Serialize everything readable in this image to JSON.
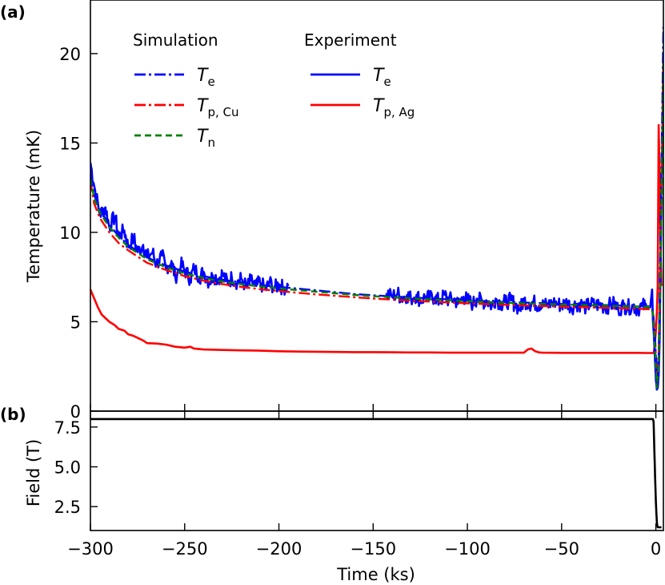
{
  "chart_data": [
    {
      "type": "line",
      "panel_label": "(a)",
      "ylabel": "Temperature (mK)",
      "xlim": [
        -300,
        4
      ],
      "ylim": [
        0,
        23
      ],
      "y_ticks": [
        0,
        5,
        10,
        15,
        20
      ],
      "y_tick_labels": [
        "0",
        "5",
        "10",
        "15",
        "20"
      ],
      "legend": {
        "placement": "top-left",
        "groups": [
          {
            "header": "Simulation",
            "entries": [
              {
                "symbol": "T",
                "sub": "e",
                "color": "#0000ff",
                "dash": "dashdot"
              },
              {
                "symbol": "T",
                "sub": "p, Cu",
                "color": "#ff0000",
                "dash": "dashdot"
              },
              {
                "symbol": "T",
                "sub": "n",
                "color": "#008000",
                "dash": "dashed"
              }
            ]
          },
          {
            "header": "Experiment",
            "entries": [
              {
                "symbol": "T",
                "sub": "e",
                "color": "#0000ff",
                "dash": "solid"
              },
              {
                "symbol": "T",
                "sub": "p, Ag",
                "color": "#ff0000",
                "dash": "solid"
              }
            ]
          }
        ]
      },
      "series": [
        {
          "group": "Simulation",
          "label_symbol": "T",
          "label_sub": "e",
          "color": "#0000ff",
          "dash": "dashdot",
          "x": [
            -300,
            -298,
            -295,
            -290,
            -285,
            -280,
            -270,
            -260,
            -250,
            -240,
            -230,
            -220,
            -210,
            -200,
            -190,
            -180,
            -170,
            -160,
            -150,
            -140,
            -130,
            -120,
            -110,
            -100,
            -90,
            -80,
            -70,
            -60,
            -50,
            -40,
            -30,
            -20,
            -10,
            -3,
            -1.5,
            -0.5,
            0.5,
            1.5,
            2.5,
            4
          ],
          "y": [
            13.2,
            12.1,
            11.3,
            10.4,
            9.8,
            9.3,
            8.6,
            8.15,
            7.8,
            7.55,
            7.35,
            7.2,
            7.05,
            6.95,
            6.85,
            6.75,
            6.65,
            6.55,
            6.48,
            6.42,
            6.36,
            6.3,
            6.25,
            6.2,
            6.15,
            6.1,
            6.07,
            6.04,
            6.0,
            5.97,
            5.94,
            5.91,
            5.88,
            5.85,
            5.6,
            4.2,
            1.8,
            3.0,
            10.0,
            21.5
          ]
        },
        {
          "group": "Simulation",
          "label_symbol": "T",
          "label_sub": "p, Cu",
          "color": "#ff0000",
          "dash": "dashdot",
          "x": [
            -300,
            -298,
            -295,
            -290,
            -285,
            -280,
            -270,
            -260,
            -250,
            -240,
            -230,
            -220,
            -210,
            -200,
            -190,
            -180,
            -170,
            -160,
            -150,
            -140,
            -130,
            -120,
            -110,
            -100,
            -90,
            -80,
            -70,
            -60,
            -50,
            -40,
            -30,
            -20,
            -10,
            -3,
            -1.5,
            -0.5,
            0.5,
            1.5,
            2.5,
            4
          ],
          "y": [
            12.9,
            11.6,
            10.8,
            10.0,
            9.4,
            9.0,
            8.3,
            7.9,
            7.55,
            7.3,
            7.1,
            6.95,
            6.82,
            6.72,
            6.62,
            6.53,
            6.45,
            6.37,
            6.3,
            6.24,
            6.18,
            6.13,
            6.08,
            6.03,
            5.99,
            5.95,
            5.91,
            5.88,
            5.85,
            5.82,
            5.79,
            5.76,
            5.73,
            5.7,
            5.5,
            4.3,
            2.0,
            3.2,
            9.0,
            20.0
          ]
        },
        {
          "group": "Simulation",
          "label_symbol": "T",
          "label_sub": "n",
          "color": "#008000",
          "dash": "dashed",
          "x": [
            -300,
            -298,
            -295,
            -290,
            -285,
            -280,
            -270,
            -260,
            -250,
            -240,
            -230,
            -220,
            -210,
            -200,
            -190,
            -180,
            -170,
            -160,
            -150,
            -140,
            -130,
            -120,
            -110,
            -100,
            -90,
            -80,
            -70,
            -60,
            -50,
            -40,
            -30,
            -20,
            -10,
            -3,
            -1.5,
            -0.5,
            0.5,
            1.5,
            2.5,
            4
          ],
          "y": [
            13.0,
            11.9,
            11.1,
            10.3,
            9.7,
            9.2,
            8.5,
            8.05,
            7.7,
            7.45,
            7.25,
            7.1,
            6.97,
            6.87,
            6.77,
            6.68,
            6.59,
            6.5,
            6.43,
            6.37,
            6.31,
            6.25,
            6.2,
            6.15,
            6.1,
            6.06,
            6.03,
            6.0,
            5.97,
            5.94,
            5.91,
            5.88,
            5.85,
            5.82,
            5.5,
            3.6,
            1.3,
            2.6,
            8.0,
            19.5
          ]
        },
        {
          "group": "Experiment",
          "label_symbol": "T",
          "label_sub": "e",
          "color": "#0000ff",
          "dash": "solid",
          "noisy": true,
          "x": [
            -300,
            -298,
            -295,
            -292,
            -290,
            -287,
            -285,
            -282,
            -280,
            -277,
            -275,
            -272,
            -270,
            -267,
            -265,
            -262,
            -260,
            -257,
            -255,
            -252,
            -250,
            -247,
            -245,
            -242,
            -240,
            -237,
            -235,
            -232,
            -230,
            -227,
            -225,
            -222,
            -220,
            -217,
            -215,
            -212,
            -210,
            -207,
            -205,
            -202,
            -200,
            -198,
            -195,
            null,
            -143,
            -140,
            -137,
            -135,
            -132,
            -130,
            -127,
            -125,
            -122,
            -120,
            -117,
            -115,
            -112,
            -110,
            -107,
            -105,
            -102,
            -100,
            -97,
            -95,
            -92,
            -90,
            -87,
            -85,
            -82,
            -80,
            -77,
            -75,
            -72,
            -70,
            -67,
            -65,
            -62,
            -60,
            -57,
            -55,
            -52,
            -50,
            -47,
            -45,
            -42,
            -40,
            -37,
            -35,
            -32,
            -30,
            -27,
            -25,
            -22,
            -20,
            -17,
            -15,
            -12,
            -10,
            -7,
            -5,
            -3,
            -2,
            -1.5,
            -1,
            -0.5,
            0,
            0.5,
            1,
            1.5,
            2,
            3
          ],
          "y": [
            13.9,
            12.6,
            11.0,
            11.4,
            10.3,
            10.9,
            9.8,
            10.1,
            9.2,
            9.7,
            8.9,
            9.3,
            8.6,
            8.9,
            8.2,
            8.7,
            8.0,
            8.4,
            7.5,
            8.2,
            7.9,
            7.4,
            8.0,
            7.5,
            7.8,
            7.2,
            7.6,
            7.4,
            7.7,
            7.1,
            7.5,
            7.2,
            7.4,
            6.9,
            7.3,
            7.0,
            7.2,
            6.8,
            7.2,
            6.9,
            7.1,
            6.9,
            7.0,
            null,
            6.6,
            6.4,
            6.6,
            6.3,
            6.5,
            6.3,
            6.5,
            6.2,
            6.4,
            6.3,
            6.4,
            6.1,
            6.5,
            6.2,
            6.3,
            6.0,
            6.4,
            6.2,
            6.0,
            6.3,
            6.1,
            6.2,
            5.9,
            6.3,
            6.0,
            6.1,
            6.2,
            6.0,
            5.7,
            6.2,
            6.0,
            6.1,
            5.9,
            6.2,
            5.8,
            6.1,
            6.0,
            5.9,
            6.1,
            5.8,
            6.0,
            6.0,
            5.8,
            6.0,
            5.9,
            6.0,
            5.8,
            5.9,
            6.0,
            5.7,
            5.9,
            5.8,
            5.9,
            5.7,
            5.9,
            5.8,
            5.8,
            6.8,
            5.0,
            4.2,
            3.0,
            1.8,
            1.2,
            1.3,
            2.0,
            4.0,
            12.0
          ]
        },
        {
          "group": "Experiment",
          "label_symbol": "T",
          "label_sub": "p, Ag",
          "color": "#ff0000",
          "dash": "solid",
          "x": [
            -300,
            -298,
            -296,
            -294,
            -292,
            -290,
            -287,
            -285,
            -282,
            -280,
            -277,
            -275,
            -272,
            -270,
            -265,
            -260,
            -255,
            -250,
            -247,
            -245,
            -240,
            -230,
            -220,
            -210,
            -200,
            -190,
            -180,
            -170,
            -160,
            -150,
            -140,
            -130,
            -120,
            -110,
            -100,
            -90,
            -80,
            -70,
            -68,
            -66,
            -64,
            -62,
            -60,
            -50,
            -40,
            -30,
            -20,
            -10,
            -5,
            -2,
            -1.5,
            -1,
            -0.5,
            0,
            0.5,
            1,
            1.5,
            2,
            2.5,
            3
          ],
          "y": [
            6.8,
            6.3,
            5.8,
            5.4,
            5.2,
            5.0,
            4.8,
            4.6,
            4.5,
            4.3,
            4.2,
            4.1,
            3.95,
            3.8,
            3.78,
            3.72,
            3.6,
            3.55,
            3.6,
            3.5,
            3.45,
            3.42,
            3.4,
            3.38,
            3.35,
            3.33,
            3.32,
            3.31,
            3.3,
            3.3,
            3.29,
            3.28,
            3.28,
            3.27,
            3.27,
            3.27,
            3.27,
            3.27,
            3.45,
            3.5,
            3.35,
            3.28,
            3.27,
            3.26,
            3.26,
            3.26,
            3.26,
            3.26,
            3.25,
            3.25,
            3.25,
            3.3,
            3.8,
            4.5,
            5.5,
            7.0,
            16.0,
            13.0,
            9.0,
            7.0
          ]
        }
      ]
    },
    {
      "type": "line",
      "panel_label": "(b)",
      "xlabel": "Time (ks)",
      "ylabel": "Field (T)",
      "xlim": [
        -300,
        4
      ],
      "ylim": [
        1.0,
        8.5
      ],
      "x_ticks": [
        -300,
        -250,
        -200,
        -150,
        -100,
        -50,
        0
      ],
      "x_tick_labels": [
        "−300",
        "−250",
        "−200",
        "−150",
        "−100",
        "−50",
        "0"
      ],
      "y_ticks": [
        2.5,
        5.0,
        7.5
      ],
      "y_tick_labels": [
        "2.5",
        "5.0",
        "7.5"
      ],
      "series": [
        {
          "color": "#000000",
          "dash": "solid",
          "x": [
            -300,
            -1.5,
            -1.2,
            -1.0,
            -0.8,
            -0.6,
            -0.4,
            -0.2,
            0,
            0.3,
            0.6,
            1.0,
            2.0,
            3.0
          ],
          "y": [
            8.0,
            8.0,
            7.8,
            7.0,
            6.0,
            5.2,
            4.4,
            3.6,
            2.8,
            2.0,
            1.4,
            1.2,
            1.2,
            1.2
          ]
        }
      ]
    }
  ]
}
